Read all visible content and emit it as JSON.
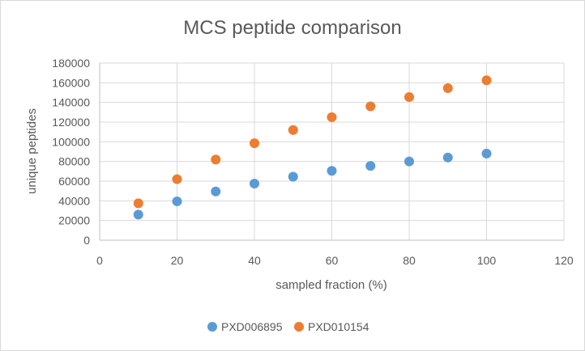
{
  "chart_data": {
    "type": "scatter",
    "title": "MCS peptide comparison",
    "xlabel": "sampled fraction (%)",
    "ylabel": "unique peptides",
    "xlim": [
      0,
      120
    ],
    "ylim": [
      0,
      180000
    ],
    "x_ticks": [
      0,
      20,
      40,
      60,
      80,
      100,
      120
    ],
    "y_ticks": [
      0,
      20000,
      40000,
      60000,
      80000,
      100000,
      120000,
      140000,
      160000,
      180000
    ],
    "grid": true,
    "legend_position": "bottom",
    "series": [
      {
        "name": "PXD006895",
        "color": "#5b9bd5",
        "x": [
          10,
          20,
          30,
          40,
          50,
          60,
          70,
          80,
          90,
          100
        ],
        "y": [
          26000,
          39500,
          49500,
          57500,
          64500,
          70500,
          75500,
          80000,
          84000,
          88000
        ]
      },
      {
        "name": "PXD010154",
        "color": "#ed7d31",
        "x": [
          10,
          20,
          30,
          40,
          50,
          60,
          70,
          80,
          90,
          100
        ],
        "y": [
          37500,
          62000,
          82000,
          98500,
          112000,
          125000,
          136000,
          145500,
          154500,
          162500
        ]
      }
    ]
  }
}
